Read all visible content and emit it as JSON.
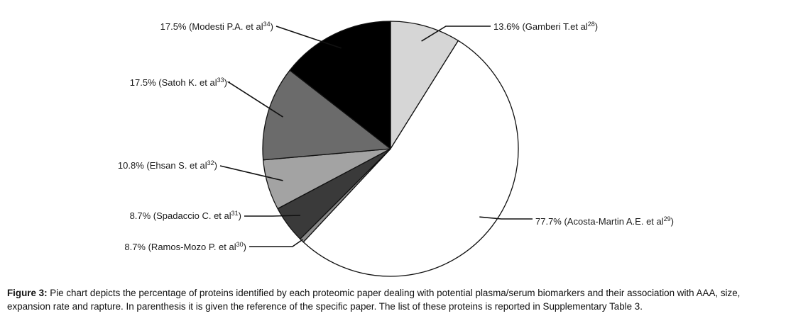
{
  "chart_data": {
    "type": "pie",
    "slices": [
      {
        "label": "13.6% (Gamberi T.et al",
        "ref": "28",
        "value": 13.6,
        "color": "#d6d6d6"
      },
      {
        "label": "77.7% (Acosta-Martin A.E. et al",
        "ref": "29",
        "value": 77.7,
        "color": "#ffffff"
      },
      {
        "label": "8.7% (Ramos-Mozo P. et al",
        "ref": "30",
        "value": 8.7,
        "color": "#8a8a8a"
      },
      {
        "label": "8.7% (Spadaccio C. et al",
        "ref": "31",
        "value": 8.7,
        "color": "#3a3a3a"
      },
      {
        "label": "10.8% (Ehsan S. et al",
        "ref": "32",
        "value": 10.8,
        "color": "#a3a3a3"
      },
      {
        "label": "17.5% (Satoh K. et al",
        "ref": "33",
        "value": 17.5,
        "color": "#6b6b6b"
      },
      {
        "label": "17.5% (Modesti P.A. et al",
        "ref": "34",
        "value": 17.5,
        "color": "#000000"
      }
    ]
  },
  "caption": {
    "label": "Figure 3:",
    "text": " Pie chart depicts the percentage of proteins identified by each proteomic paper dealing with potential plasma/serum biomarkers and their association with AAA, size, expansion rate and rapture. In parenthesis it is given the reference of the specific paper. The list of these proteins is reported in Supplementary Table 3."
  }
}
